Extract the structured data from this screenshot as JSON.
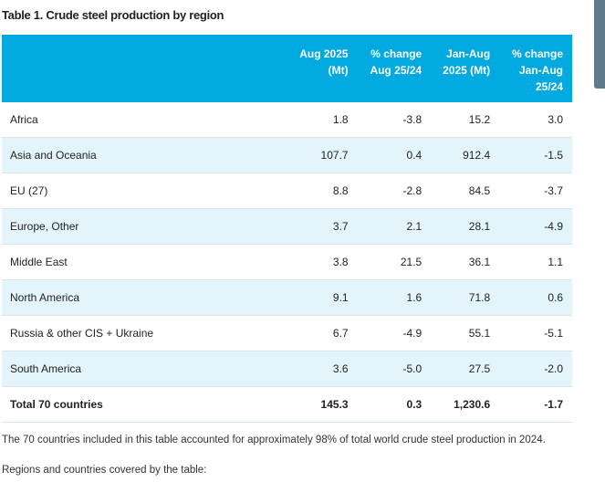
{
  "title": "Table 1. Crude steel production by region",
  "headers": [
    "",
    "Aug 2025\n(Mt)",
    "% change\nAug 25/24",
    "Jan-Aug\n2025 (Mt)",
    "% change\nJan-Aug\n25/24"
  ],
  "rows": [
    [
      "Africa",
      "1.8",
      "-3.8",
      "15.2",
      "3.0"
    ],
    [
      "Asia and Oceania",
      "107.7",
      "0.4",
      "912.4",
      "-1.5"
    ],
    [
      "EU (27)",
      "8.8",
      "-2.8",
      "84.5",
      "-3.7"
    ],
    [
      "Europe, Other",
      "3.7",
      "2.1",
      "28.1",
      "-4.9"
    ],
    [
      "Middle East",
      "3.8",
      "21.5",
      "36.1",
      "1.1"
    ],
    [
      "North America",
      "9.1",
      "1.6",
      "71.8",
      "0.6"
    ],
    [
      "Russia & other CIS + Ukraine",
      "6.7",
      "-4.9",
      "55.1",
      "-5.1"
    ],
    [
      "South America",
      "3.6",
      "-5.0",
      "27.5",
      "-2.0"
    ]
  ],
  "total": [
    "Total 70 countries",
    "145.3",
    "0.3",
    "1,230.6",
    "-1.7"
  ],
  "note1": "The 70 countries included in this table accounted for approximately 98% of total world crude steel production in 2024.",
  "note2": "Regions and countries covered by the table:",
  "colors": {
    "header": "#00a9e0",
    "row_alt": "#e3f4fb"
  }
}
